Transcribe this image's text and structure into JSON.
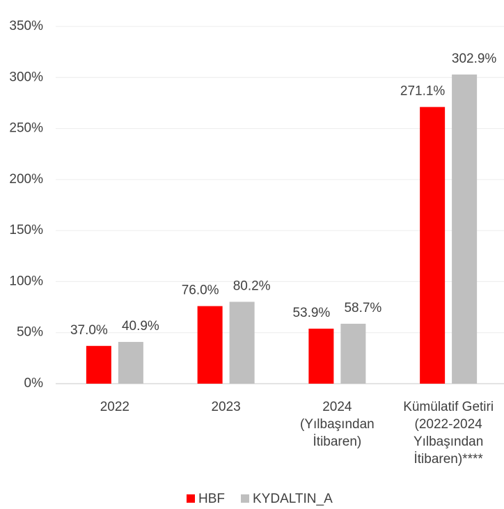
{
  "chart_data": {
    "type": "bar",
    "categories": [
      [
        "2022"
      ],
      [
        "2023"
      ],
      [
        "2024",
        "(Yılbaşından",
        "İtibaren)"
      ],
      [
        "Kümülatif Getiri",
        "(2022-2024",
        "Yılbaşından",
        "İtibaren)****"
      ]
    ],
    "series": [
      {
        "name": "HBF",
        "color": "#ff0000",
        "label_color": "#ff0000",
        "values": [
          37.0,
          76.0,
          53.9,
          271.1
        ],
        "value_labels": [
          "37.0%",
          "76.0%",
          "53.9%",
          "271.1%"
        ]
      },
      {
        "name": "KYDALTIN_A",
        "color": "#bfbfbf",
        "label_color": "#595959",
        "values": [
          40.9,
          80.2,
          58.7,
          302.9
        ],
        "value_labels": [
          "40.9%",
          "80.2%",
          "58.7%",
          "302.9%"
        ]
      }
    ],
    "ylim": [
      0,
      350
    ],
    "yticks": [
      {
        "value": 0,
        "label": "0%"
      },
      {
        "value": 50,
        "label": "50%"
      },
      {
        "value": 100,
        "label": "100%"
      },
      {
        "value": 150,
        "label": "150%"
      },
      {
        "value": 200,
        "label": "200%"
      },
      {
        "value": 250,
        "label": "250%"
      },
      {
        "value": 300,
        "label": "300%"
      },
      {
        "value": 350,
        "label": "350%"
      }
    ],
    "grid": true,
    "legend": "bottom"
  }
}
